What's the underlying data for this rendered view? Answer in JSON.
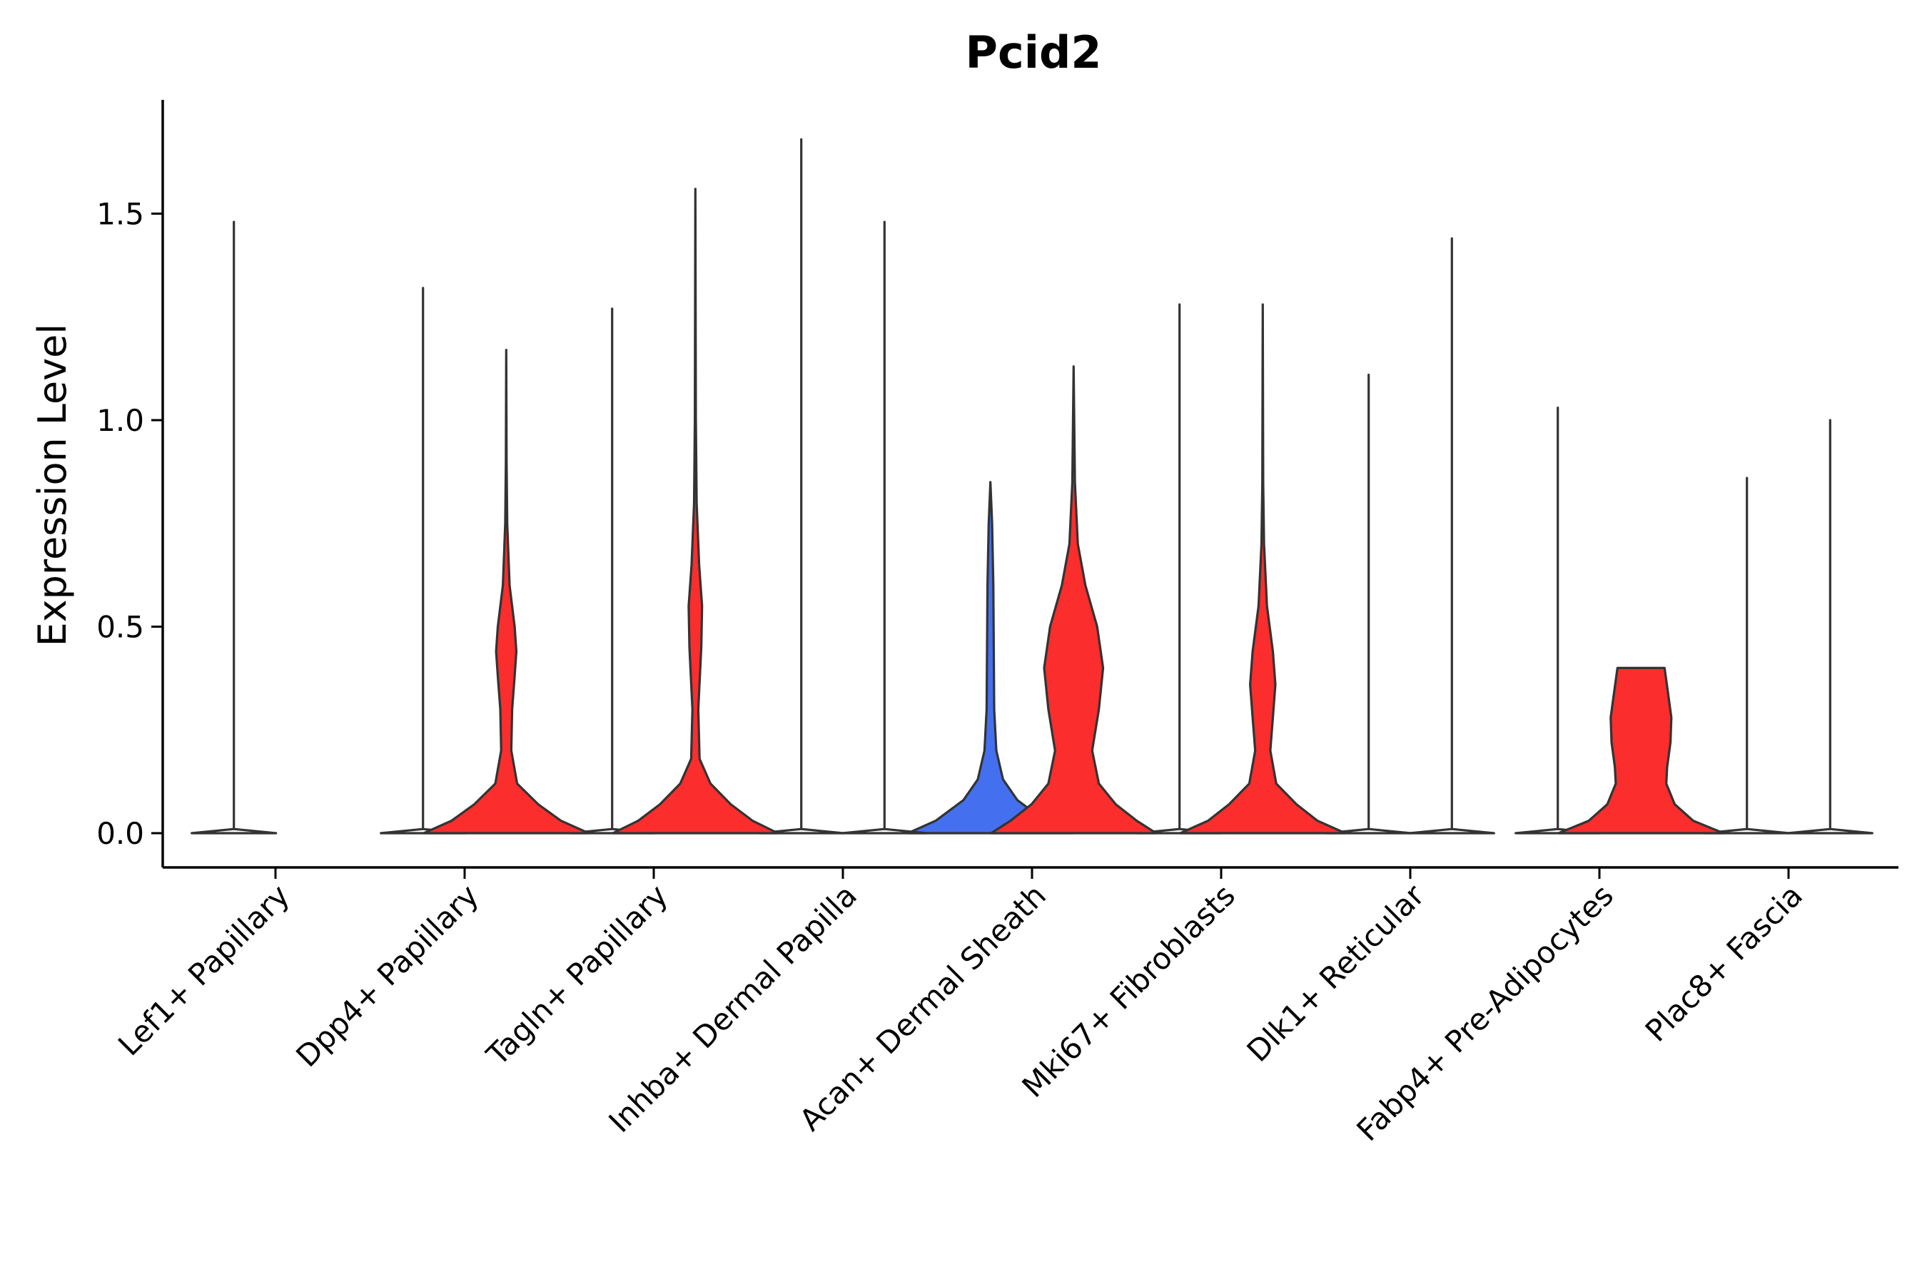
{
  "chart_data": {
    "type": "violin",
    "title": "Pcid2",
    "xlabel": "",
    "ylabel": "Expression Level",
    "ylim": [
      -0.08,
      1.77
    ],
    "yticks": [
      0.0,
      0.5,
      1.0,
      1.5
    ],
    "ytick_labels": [
      "0.0",
      "0.5",
      "1.0",
      "1.5"
    ],
    "categories": [
      "Lef1+ Papillary",
      "Dpp4+ Papillary",
      "Tagln+ Papillary",
      "Inhba+ Dermal Papilla",
      "Acan+ Dermal Sheath",
      "Mki67+ Fibroblasts",
      "Dlk1+ Reticular",
      "Fabp4+ Pre-Adipocytes",
      "Plac8+ Fascia"
    ],
    "colors": {
      "group_a": "#4470f0",
      "group_b": "#fb2d2d"
    },
    "series": [
      {
        "name": "group_a",
        "offset": -0.22,
        "max": [
          1.48,
          1.32,
          1.27,
          1.68,
          0.85,
          1.28,
          1.11,
          1.03,
          0.86
        ],
        "profile": [
          [
            [
              0,
              0.5
            ],
            [
              0.01,
              0.0
            ]
          ],
          [
            [
              0,
              0.5
            ],
            [
              0.01,
              0.0
            ]
          ],
          [
            [
              0,
              0.5
            ],
            [
              0.01,
              0.0
            ]
          ],
          [
            [
              0,
              0.5
            ],
            [
              0.01,
              0.0
            ]
          ],
          [
            [
              0,
              0.98
            ],
            [
              0.03,
              0.65
            ],
            [
              0.08,
              0.32
            ],
            [
              0.13,
              0.15
            ],
            [
              0.2,
              0.07
            ],
            [
              0.3,
              0.045
            ],
            [
              0.45,
              0.04
            ],
            [
              0.6,
              0.035
            ],
            [
              0.75,
              0.02
            ],
            [
              0.85,
              0.0
            ]
          ],
          [
            [
              0,
              0.5
            ],
            [
              0.01,
              0.0
            ]
          ],
          [
            [
              0,
              0.5
            ],
            [
              0.01,
              0.0
            ]
          ],
          [
            [
              0,
              0.5
            ],
            [
              0.01,
              0.0
            ]
          ],
          [
            [
              0,
              0.5
            ],
            [
              0.01,
              0.0
            ]
          ]
        ]
      },
      {
        "name": "group_b",
        "offset": 0.22,
        "max": [
          0.0,
          1.17,
          1.56,
          1.48,
          1.13,
          1.28,
          1.44,
          0.4,
          1.0
        ],
        "profile": [
          [
            [
              0,
              0.0
            ]
          ],
          [
            [
              0,
              0.98
            ],
            [
              0.03,
              0.65
            ],
            [
              0.07,
              0.38
            ],
            [
              0.12,
              0.13
            ],
            [
              0.2,
              0.06
            ],
            [
              0.3,
              0.07
            ],
            [
              0.38,
              0.1
            ],
            [
              0.44,
              0.12
            ],
            [
              0.5,
              0.1
            ],
            [
              0.6,
              0.04
            ],
            [
              0.75,
              0.012
            ],
            [
              0.9,
              0.004
            ],
            [
              1.17,
              0.0
            ]
          ],
          [
            [
              0,
              0.98
            ],
            [
              0.03,
              0.68
            ],
            [
              0.07,
              0.42
            ],
            [
              0.12,
              0.18
            ],
            [
              0.18,
              0.05
            ],
            [
              0.3,
              0.035
            ],
            [
              0.45,
              0.07
            ],
            [
              0.55,
              0.08
            ],
            [
              0.65,
              0.045
            ],
            [
              0.8,
              0.015
            ],
            [
              1.0,
              0.006
            ],
            [
              1.56,
              0.0
            ]
          ],
          [
            [
              0,
              0.5
            ],
            [
              0.01,
              0.0
            ]
          ],
          [
            [
              0,
              0.98
            ],
            [
              0.03,
              0.75
            ],
            [
              0.07,
              0.5
            ],
            [
              0.12,
              0.3
            ],
            [
              0.2,
              0.22
            ],
            [
              0.3,
              0.3
            ],
            [
              0.4,
              0.35
            ],
            [
              0.5,
              0.28
            ],
            [
              0.6,
              0.14
            ],
            [
              0.7,
              0.05
            ],
            [
              0.85,
              0.015
            ],
            [
              1.13,
              0.0
            ]
          ],
          [
            [
              0,
              0.98
            ],
            [
              0.03,
              0.65
            ],
            [
              0.07,
              0.4
            ],
            [
              0.12,
              0.16
            ],
            [
              0.2,
              0.09
            ],
            [
              0.28,
              0.12
            ],
            [
              0.36,
              0.15
            ],
            [
              0.44,
              0.12
            ],
            [
              0.55,
              0.05
            ],
            [
              0.7,
              0.015
            ],
            [
              0.85,
              0.005
            ],
            [
              1.28,
              0.0
            ]
          ],
          [
            [
              0,
              0.5
            ],
            [
              0.01,
              0.0
            ]
          ],
          [
            [
              0,
              0.98
            ],
            [
              0.03,
              0.62
            ],
            [
              0.07,
              0.4
            ],
            [
              0.12,
              0.3
            ],
            [
              0.16,
              0.31
            ],
            [
              0.22,
              0.35
            ],
            [
              0.28,
              0.36
            ],
            [
              0.34,
              0.32
            ],
            [
              0.4,
              0.28
            ],
            [
              0.4,
              0.0
            ]
          ],
          [
            [
              0,
              0.5
            ],
            [
              0.01,
              0.0
            ]
          ]
        ]
      }
    ]
  }
}
